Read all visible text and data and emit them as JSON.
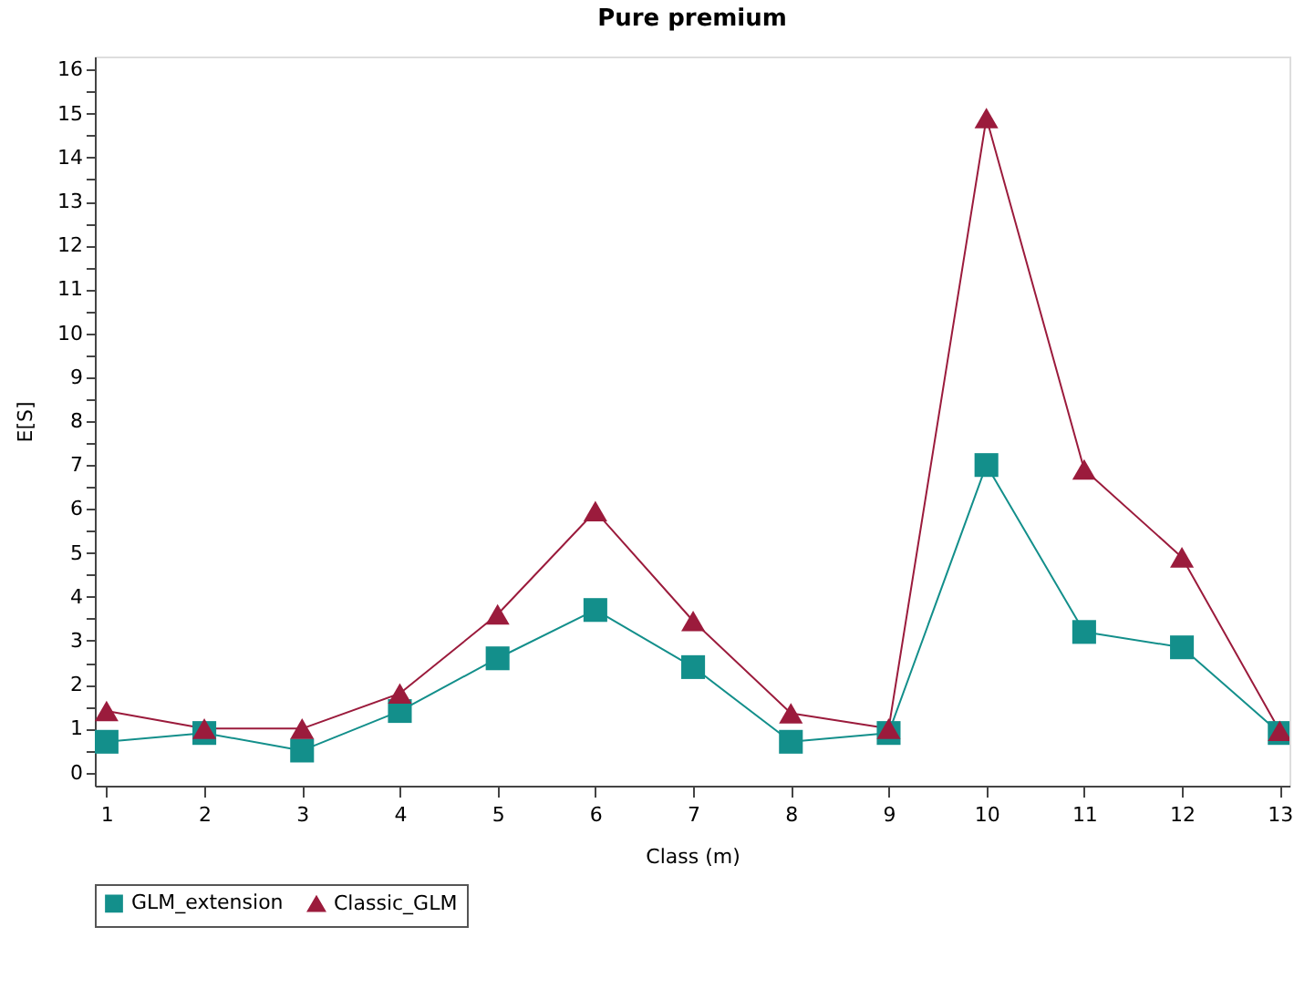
{
  "chart_data": {
    "type": "line",
    "title": "Pure premium",
    "xlabel": "Class (m)",
    "ylabel": "E[S]",
    "x": [
      1,
      2,
      3,
      4,
      5,
      6,
      7,
      8,
      9,
      10,
      11,
      12,
      13
    ],
    "xlim": [
      0.88,
      13.1
    ],
    "xticks": [
      1,
      2,
      3,
      4,
      5,
      6,
      7,
      8,
      9,
      10,
      11,
      12,
      13
    ],
    "ylim": [
      -0.3,
      16.3
    ],
    "yticks": [
      0,
      {
        "value": 0.5,
        "label": null
      },
      1,
      {
        "value": 1.5,
        "label": null
      },
      2,
      {
        "value": 2.5,
        "label": null
      },
      3,
      {
        "value": 3.5,
        "label": null
      },
      4,
      {
        "value": 4.5,
        "label": null
      },
      5,
      {
        "value": 5.5,
        "label": null
      },
      6,
      {
        "value": 6.5,
        "label": null
      },
      7,
      {
        "value": 7.5,
        "label": null
      },
      8,
      {
        "value": 8.5,
        "label": null
      },
      9,
      {
        "value": 9.5,
        "label": null
      },
      10,
      {
        "value": 10.5,
        "label": null
      },
      11,
      {
        "value": 11.5,
        "label": null
      },
      12,
      {
        "value": 12.5,
        "label": null
      },
      13,
      {
        "value": 13.5,
        "label": null
      },
      14,
      {
        "value": 14.5,
        "label": null
      },
      15,
      {
        "value": 15.5,
        "label": null
      },
      16
    ],
    "grid": false,
    "legend": "bottom",
    "line_style": "solid",
    "series": [
      {
        "name": "GLM_extension",
        "color": "#138f8b",
        "marker": "square",
        "values": [
          0.7,
          0.9,
          0.5,
          1.4,
          2.6,
          3.7,
          2.4,
          0.7,
          0.9,
          7.0,
          3.2,
          2.85,
          0.9
        ]
      },
      {
        "name": "Classic_GLM",
        "color": "#9b1b3c",
        "marker": "triangle",
        "values": [
          1.4,
          1.0,
          1.0,
          1.8,
          3.6,
          5.95,
          3.45,
          1.35,
          1.0,
          14.9,
          6.9,
          4.9,
          0.95
        ]
      }
    ]
  }
}
